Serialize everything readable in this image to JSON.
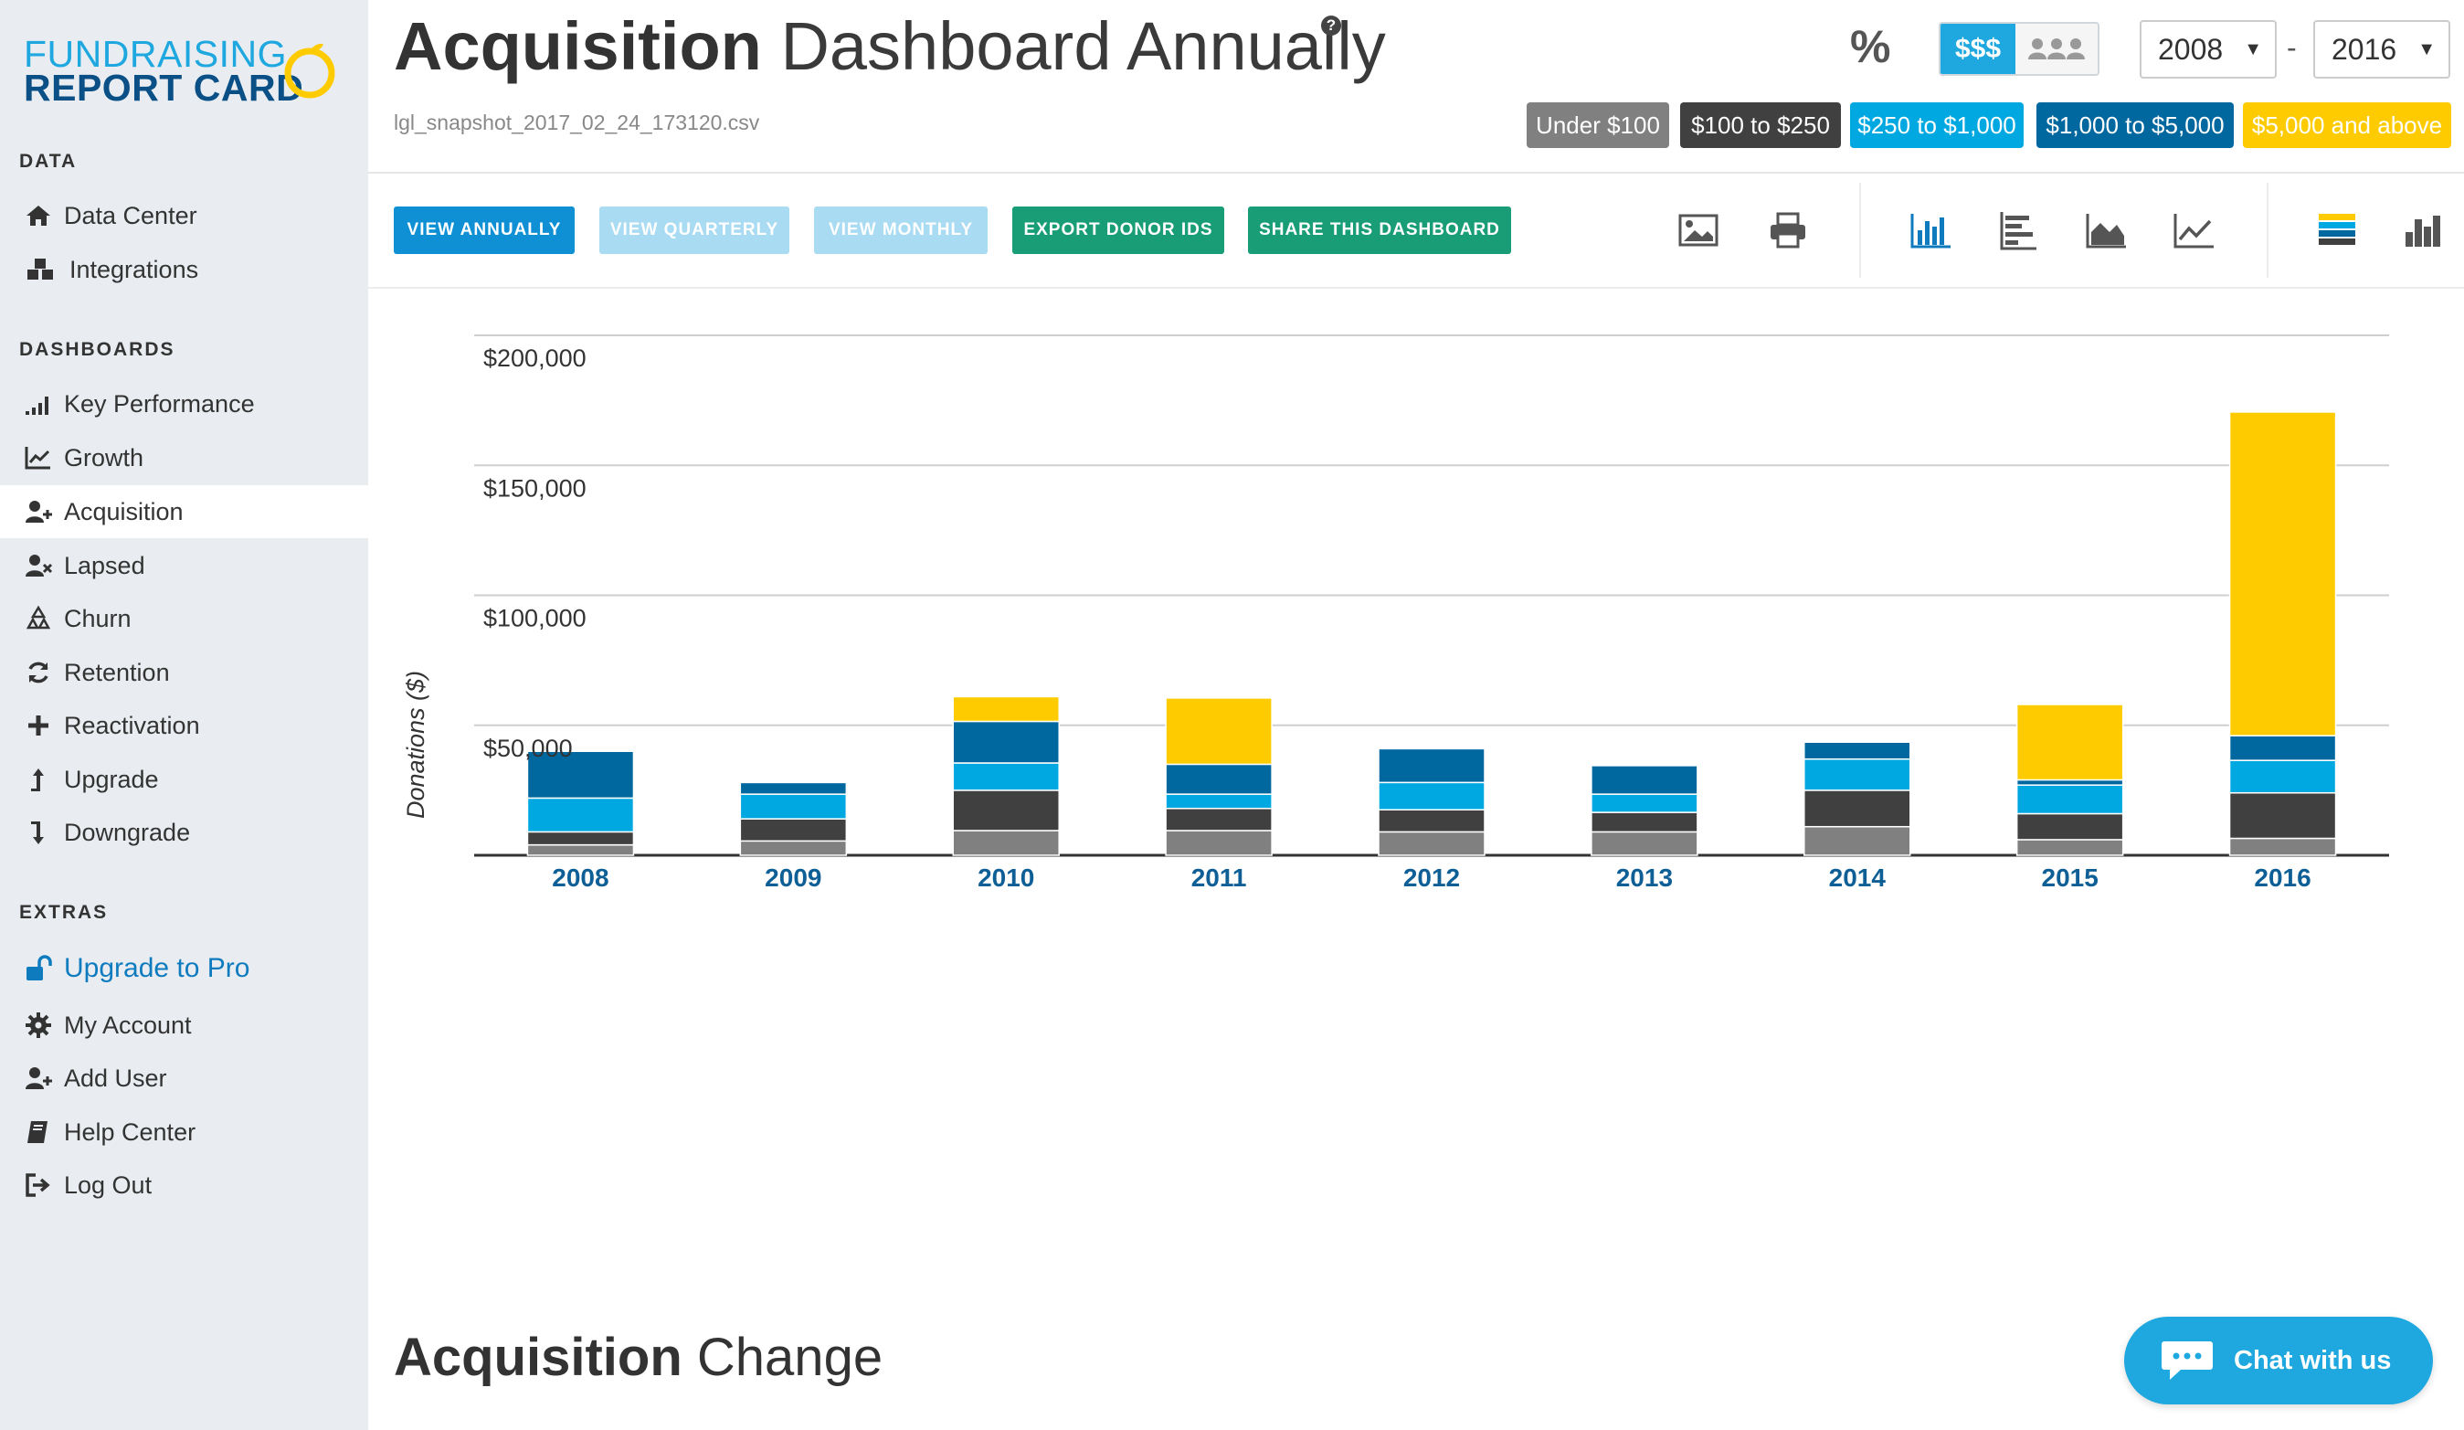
{
  "app": {
    "logo_line1": "FUNDRAISING",
    "logo_line2": "REPORT CARD"
  },
  "sidebar": {
    "sections": [
      {
        "title": "DATA",
        "items": [
          {
            "label": "Data Center",
            "icon": "home-icon"
          },
          {
            "label": "Integrations",
            "icon": "cubes-icon"
          }
        ]
      },
      {
        "title": "DASHBOARDS",
        "items": [
          {
            "label": "Key Performance",
            "icon": "signal-bars-icon"
          },
          {
            "label": "Growth",
            "icon": "line-chart-icon"
          },
          {
            "label": "Acquisition",
            "icon": "user-plus-icon",
            "active": true
          },
          {
            "label": "Lapsed",
            "icon": "user-times-icon"
          },
          {
            "label": "Churn",
            "icon": "recycle-icon"
          },
          {
            "label": "Retention",
            "icon": "refresh-icon"
          },
          {
            "label": "Reactivation",
            "icon": "plus-icon"
          },
          {
            "label": "Upgrade",
            "icon": "arrow-up-icon"
          },
          {
            "label": "Downgrade",
            "icon": "arrow-down-icon"
          }
        ]
      },
      {
        "title": "EXTRAS",
        "items": [
          {
            "label": "Upgrade to Pro",
            "icon": "unlock-icon"
          },
          {
            "label": "My Account",
            "icon": "gear-icon"
          },
          {
            "label": "Add User",
            "icon": "user-plus-icon"
          },
          {
            "label": "Help Center",
            "icon": "book-icon"
          },
          {
            "label": "Log Out",
            "icon": "sign-out-icon"
          }
        ]
      }
    ]
  },
  "header": {
    "title_bold": "Acquisition",
    "title_rest": "Dashboard Annually",
    "help": "?",
    "filename": "lgl_snapshot_2017_02_24_173120.csv",
    "percent_label": "%",
    "dollars_label": "$$$",
    "year_from": "2008",
    "year_to": "2016",
    "range_sep": "-",
    "legend": [
      {
        "label": "Under $100",
        "color": "#808080"
      },
      {
        "label": "$100 to $250",
        "color": "#404040"
      },
      {
        "label": "$250 to $1,000",
        "color": "#00a8e1"
      },
      {
        "label": "$1,000 to $5,000",
        "color": "#00679f"
      },
      {
        "label": "$5,000 and above",
        "color": "#fecb00"
      }
    ]
  },
  "toolbar": {
    "view_annually": "VIEW ANNUALLY",
    "view_quarterly": "VIEW QUARTERLY",
    "view_monthly": "VIEW MONTHLY",
    "export": "EXPORT DONOR IDS",
    "share": "SHARE THIS DASHBOARD"
  },
  "chart_data": {
    "type": "bar",
    "stacked": true,
    "ylabel": "Donations ($)",
    "ylim": [
      0,
      200000
    ],
    "yticks": [
      "$50,000",
      "$100,000",
      "$150,000",
      "$200,000"
    ],
    "ytick_values": [
      50000,
      100000,
      150000,
      200000
    ],
    "categories": [
      "2008",
      "2009",
      "2010",
      "2011",
      "2012",
      "2013",
      "2014",
      "2015",
      "2016"
    ],
    "series": [
      {
        "name": "Under $100",
        "color": "#808080",
        "values": [
          4000,
          5500,
          9500,
          9500,
          9000,
          9000,
          11000,
          6000,
          6500
        ]
      },
      {
        "name": "$100 to $250",
        "color": "#404040",
        "values": [
          5000,
          8500,
          15500,
          8500,
          8500,
          7500,
          14000,
          10000,
          17500
        ]
      },
      {
        "name": "$250 to $1,000",
        "color": "#00a8e1",
        "values": [
          13000,
          9500,
          10500,
          5500,
          10500,
          7000,
          12000,
          11000,
          12500
        ]
      },
      {
        "name": "$1,000 to $5,000",
        "color": "#00679f",
        "values": [
          18000,
          4500,
          16000,
          11500,
          13000,
          11000,
          6500,
          2000,
          9500
        ]
      },
      {
        "name": "$5,000 and above",
        "color": "#fecb00",
        "values": [
          500,
          500,
          9500,
          25500,
          500,
          500,
          500,
          29000,
          124500
        ]
      }
    ]
  },
  "section": {
    "title_bold": "Acquisition",
    "title_rest": "Change"
  },
  "chat": {
    "label": "Chat with us"
  }
}
